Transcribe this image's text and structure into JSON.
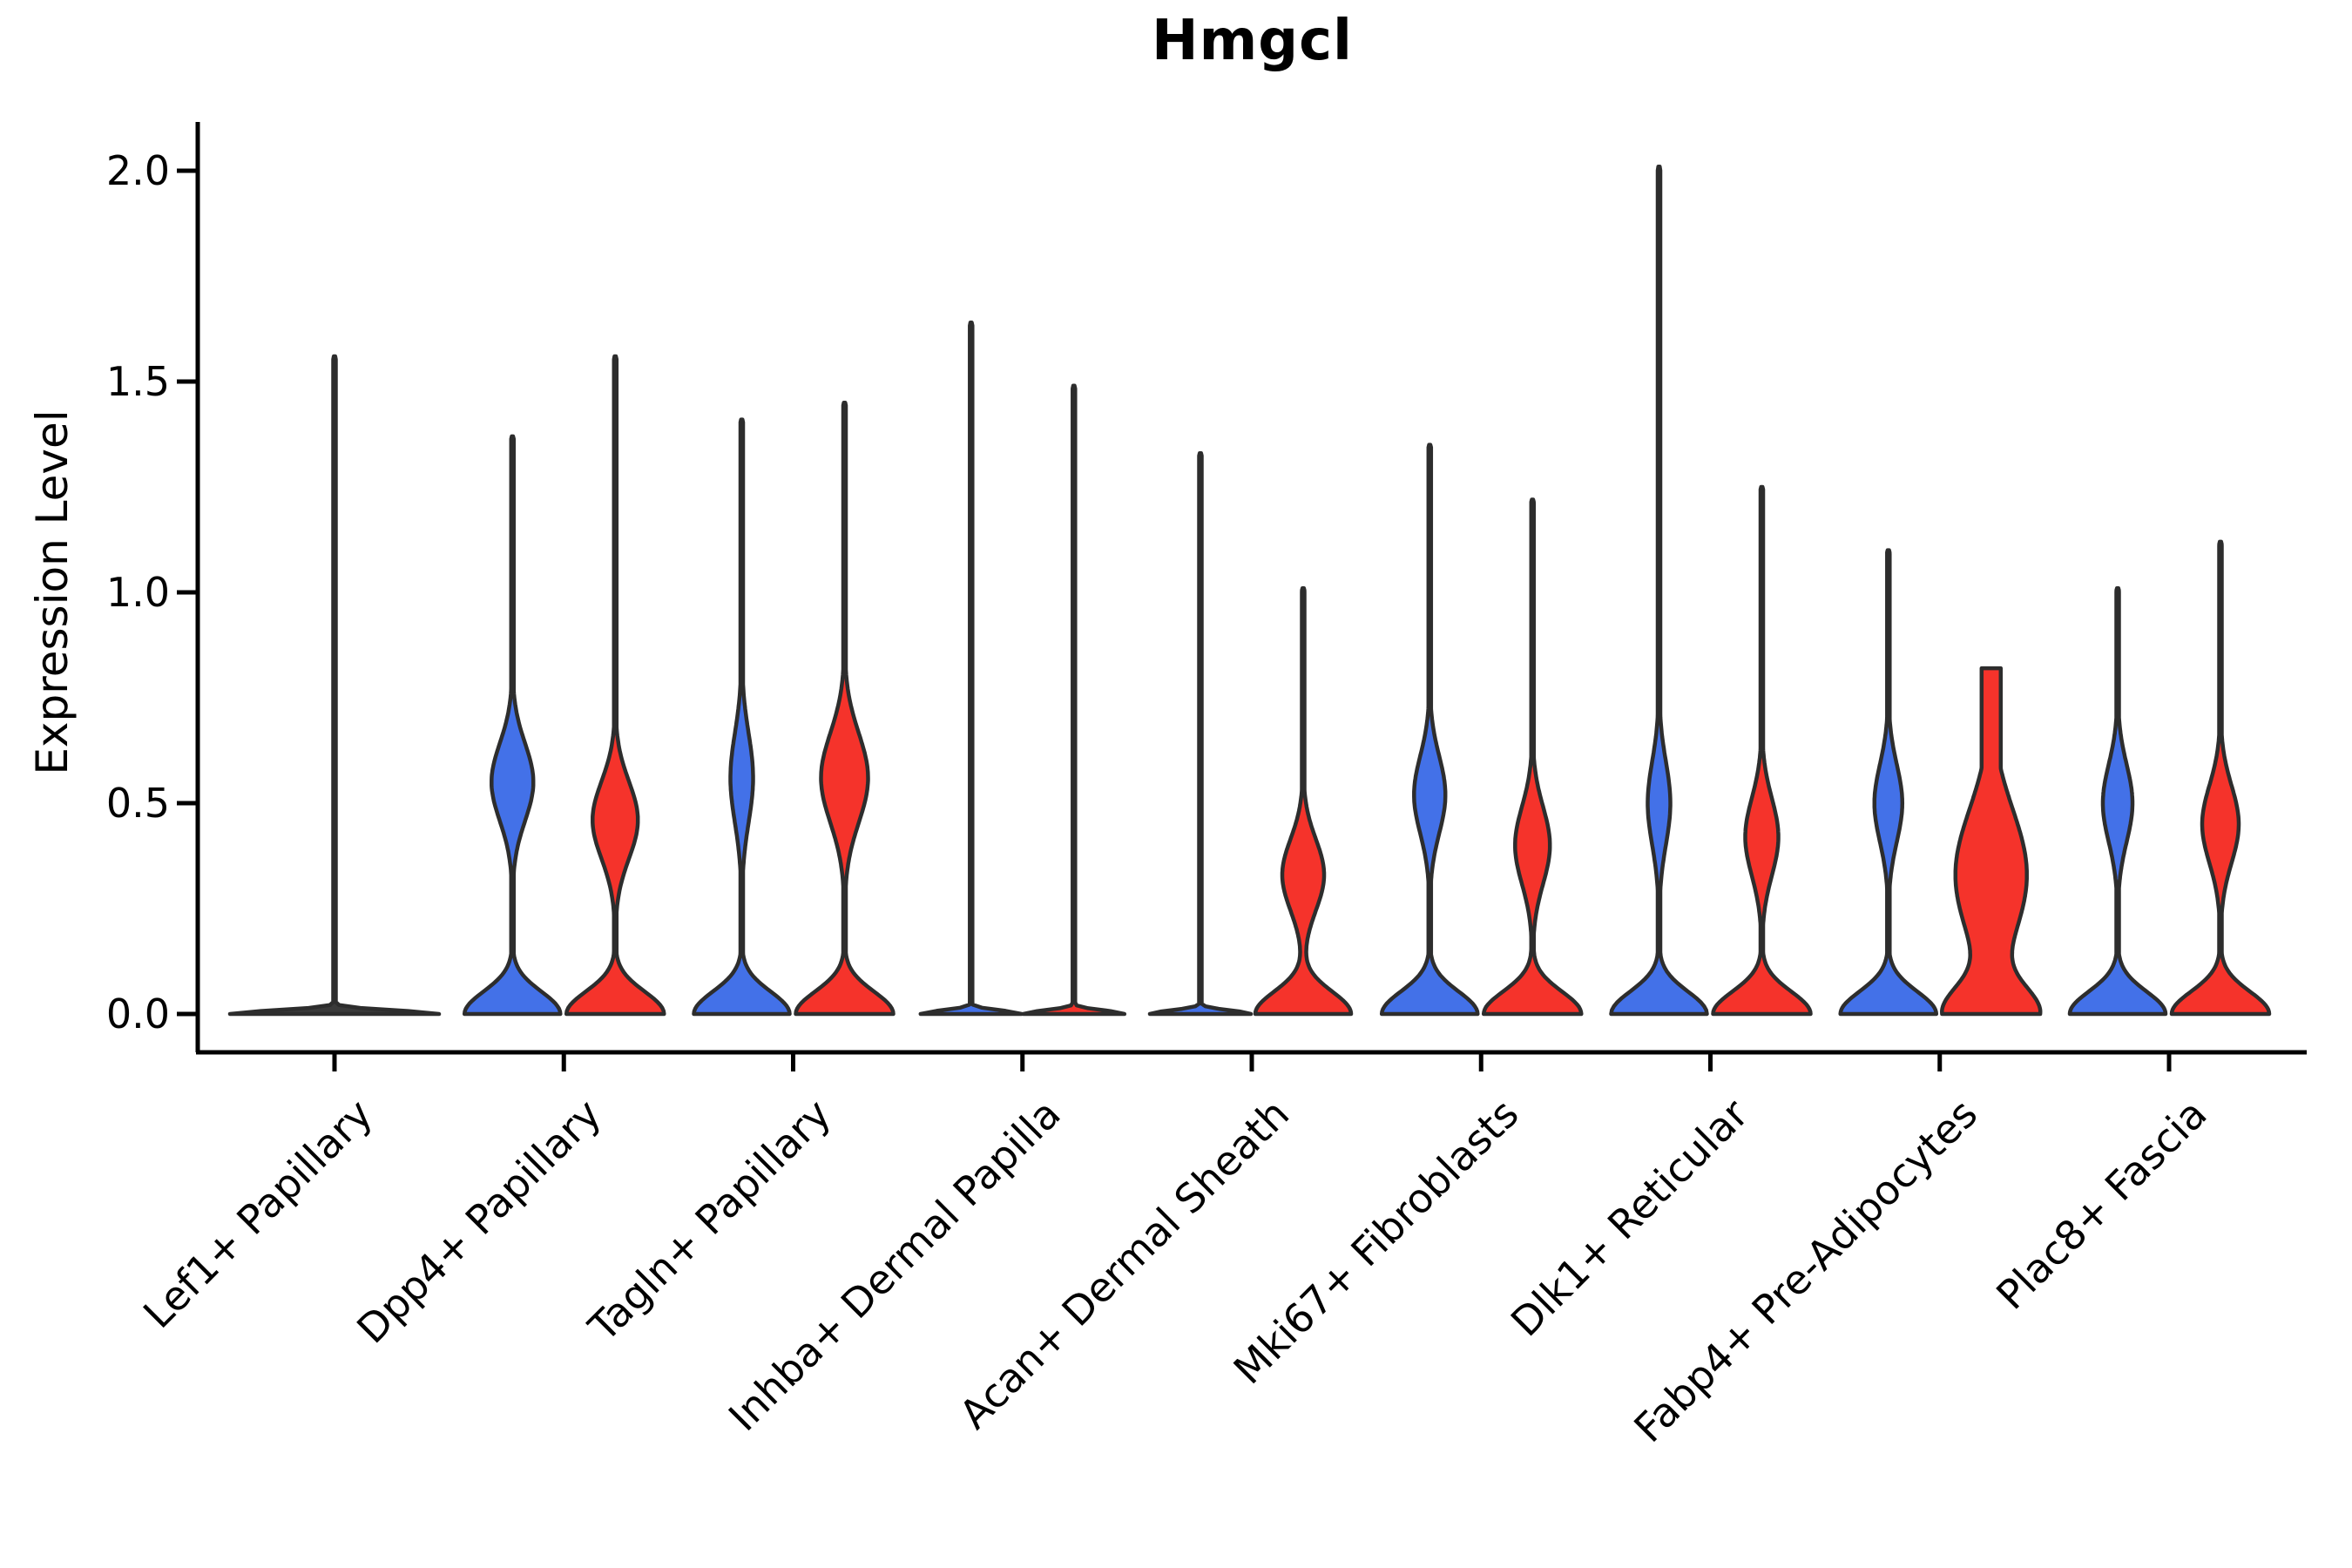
{
  "title": "Hmgcl",
  "chart_data": {
    "type": "violin",
    "title": "Hmgcl",
    "subtitle": "",
    "xlabel": "",
    "ylabel": "Expression Level",
    "yticks": [
      "0.0",
      "0.5",
      "1.0",
      "1.5",
      "2.0"
    ],
    "ytick_values": [
      0.0,
      0.5,
      1.0,
      1.5,
      2.0
    ],
    "ylim": [
      -0.09,
      2.12
    ],
    "grid": false,
    "legend_position": "none",
    "colors": {
      "left": "#4371E8",
      "right": "#F5332B",
      "edge": "#2d2d2d",
      "axis": "#000000",
      "flat": "#3a3a3a"
    },
    "categories": [
      "Lef1+ Papillary",
      "Dpp4+ Papillary",
      "Tagln+ Papillary",
      "Inhba+ Dermal Papilla",
      "Acan+ Dermal Sheath",
      "Mki67+ Fibroblasts",
      "Dlk1+ Reticular",
      "Fabp4+ Pre-Adipocytes",
      "Plac8+ Fascia"
    ],
    "violins": [
      {
        "category": "Lef1+ Papillary",
        "category_index": 0,
        "side": "center",
        "color": "#3a3a3a",
        "max": 1.56,
        "flat": true,
        "base_hw": 120,
        "base_sigma": 0.012,
        "bulge_amp": 0,
        "bulge_c": 0,
        "bulge_sigma": 0.1
      },
      {
        "category": "Dpp4+ Papillary",
        "category_index": 1,
        "side": "left",
        "max": 1.37,
        "bulge_c": 0.55,
        "bulge_amp": 24,
        "bulge_sigma": 0.13,
        "base_hw": 55,
        "base_sigma": 0.075
      },
      {
        "category": "Dpp4+ Papillary",
        "category_index": 1,
        "side": "right",
        "max": 1.56,
        "bulge_c": 0.46,
        "bulge_amp": 26,
        "bulge_sigma": 0.13,
        "base_hw": 56,
        "base_sigma": 0.075
      },
      {
        "category": "Tagln+ Papillary",
        "category_index": 2,
        "side": "left",
        "max": 1.41,
        "bulge_c": 0.56,
        "bulge_amp": 13,
        "bulge_sigma": 0.15,
        "base_hw": 55,
        "base_sigma": 0.075
      },
      {
        "category": "Tagln+ Papillary",
        "category_index": 2,
        "side": "right",
        "max": 1.45,
        "bulge_c": 0.56,
        "bulge_amp": 27,
        "bulge_sigma": 0.15,
        "base_hw": 56,
        "base_sigma": 0.075
      },
      {
        "category": "Inhba+ Dermal Papilla",
        "category_index": 3,
        "side": "left",
        "max": 1.64,
        "flat": true,
        "base_hw": 58,
        "base_sigma": 0.012,
        "bulge_amp": 0,
        "bulge_c": 0,
        "bulge_sigma": 0.1
      },
      {
        "category": "Inhba+ Dermal Papilla",
        "category_index": 3,
        "side": "right",
        "max": 1.49,
        "flat": true,
        "base_hw": 58,
        "base_sigma": 0.012,
        "bulge_amp": 0,
        "bulge_c": 0,
        "bulge_sigma": 0.1
      },
      {
        "category": "Acan+ Dermal Sheath",
        "category_index": 4,
        "side": "left",
        "max": 1.33,
        "flat": true,
        "base_hw": 58,
        "base_sigma": 0.012,
        "bulge_amp": 0,
        "bulge_c": 0,
        "bulge_sigma": 0.1
      },
      {
        "category": "Acan+ Dermal Sheath",
        "category_index": 4,
        "side": "right",
        "max": 1.01,
        "bulge_c": 0.33,
        "bulge_amp": 24,
        "bulge_sigma": 0.12,
        "base_hw": 55,
        "base_sigma": 0.075
      },
      {
        "category": "Mki67+ Fibroblasts",
        "category_index": 5,
        "side": "left",
        "max": 1.35,
        "bulge_c": 0.52,
        "bulge_amp": 18,
        "bulge_sigma": 0.13,
        "base_hw": 55,
        "base_sigma": 0.075
      },
      {
        "category": "Mki67+ Fibroblasts",
        "category_index": 5,
        "side": "right",
        "max": 1.22,
        "bulge_c": 0.4,
        "bulge_amp": 20,
        "bulge_sigma": 0.13,
        "base_hw": 56,
        "base_sigma": 0.075
      },
      {
        "category": "Dlk1+ Reticular",
        "category_index": 6,
        "side": "left",
        "max": 2.01,
        "bulge_c": 0.5,
        "bulge_amp": 13,
        "bulge_sigma": 0.14,
        "base_hw": 55,
        "base_sigma": 0.075
      },
      {
        "category": "Dlk1+ Reticular",
        "category_index": 6,
        "side": "right",
        "max": 1.25,
        "bulge_c": 0.42,
        "bulge_amp": 19,
        "bulge_sigma": 0.13,
        "base_hw": 56,
        "base_sigma": 0.075
      },
      {
        "category": "Fabp4+ Pre-Adipocytes",
        "category_index": 7,
        "side": "left",
        "max": 1.1,
        "bulge_c": 0.5,
        "bulge_amp": 16,
        "bulge_sigma": 0.13,
        "base_hw": 55,
        "base_sigma": 0.075
      },
      {
        "category": "Fabp4+ Pre-Adipocytes",
        "category_index": 7,
        "side": "right",
        "max": 0.82,
        "truncated": true,
        "min_hw": 11,
        "bulge_c": 0.33,
        "bulge_amp": 41,
        "bulge_sigma": 0.22,
        "base_hw": 52,
        "base_sigma": 0.09
      },
      {
        "category": "Plac8+ Fascia",
        "category_index": 8,
        "side": "left",
        "max": 1.01,
        "bulge_c": 0.5,
        "bulge_amp": 17,
        "bulge_sigma": 0.13,
        "base_hw": 55,
        "base_sigma": 0.075
      },
      {
        "category": "Plac8+ Fascia",
        "category_index": 8,
        "side": "right",
        "max": 1.12,
        "bulge_c": 0.45,
        "bulge_amp": 21,
        "bulge_sigma": 0.13,
        "base_hw": 56,
        "base_sigma": 0.075
      }
    ]
  }
}
